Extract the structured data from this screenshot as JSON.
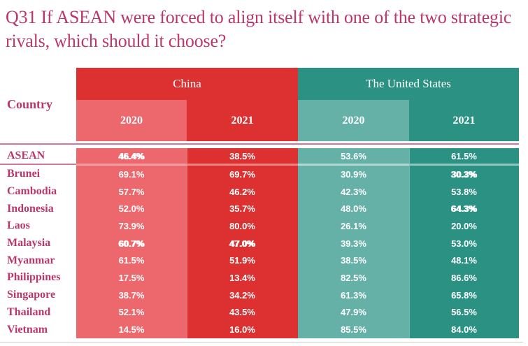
{
  "title": "Q31 If ASEAN were forced to align itself with one of the two strategic rivals, which should it choose?",
  "colors": {
    "title_magenta": "#ba376c",
    "china_red": "#dd3131",
    "china_light_red": "#ec686c",
    "us_teal": "#2b9183",
    "us_light_teal": "#65b1a8",
    "separator_pink": "#d4769a",
    "bottom_rule_gray": "#cccccc",
    "value_text": "#ffffff"
  },
  "table": {
    "country_header": "Country",
    "groups": [
      {
        "label": "China",
        "years": [
          "2020",
          "2021"
        ]
      },
      {
        "label": "The United States",
        "years": [
          "2020",
          "2021"
        ]
      }
    ],
    "rows": [
      {
        "country": "ASEAN",
        "values": [
          "46.4%",
          "38.5%",
          "53.6%",
          "61.5%"
        ],
        "bold": [
          true,
          false,
          false,
          false
        ]
      },
      {
        "country": "Brunei",
        "values": [
          "69.1%",
          "69.7%",
          "30.9%",
          "30.3%"
        ],
        "bold": [
          false,
          false,
          false,
          true
        ]
      },
      {
        "country": "Cambodia",
        "values": [
          "57.7%",
          "46.2%",
          "42.3%",
          "53.8%"
        ],
        "bold": [
          false,
          false,
          false,
          false
        ]
      },
      {
        "country": "Indonesia",
        "values": [
          "52.0%",
          "35.7%",
          "48.0%",
          "64.3%"
        ],
        "bold": [
          false,
          false,
          false,
          true
        ]
      },
      {
        "country": "Laos",
        "values": [
          "73.9%",
          "80.0%",
          "26.1%",
          "20.0%"
        ],
        "bold": [
          false,
          false,
          false,
          false
        ]
      },
      {
        "country": "Malaysia",
        "values": [
          "60.7%",
          "47.0%",
          "39.3%",
          "53.0%"
        ],
        "bold": [
          true,
          true,
          false,
          false
        ]
      },
      {
        "country": "Myanmar",
        "values": [
          "61.5%",
          "51.9%",
          "38.5%",
          "48.1%"
        ],
        "bold": [
          false,
          false,
          false,
          false
        ]
      },
      {
        "country": "Philippines",
        "values": [
          "17.5%",
          "13.4%",
          "82.5%",
          "86.6%"
        ],
        "bold": [
          false,
          false,
          false,
          false
        ]
      },
      {
        "country": "Singapore",
        "values": [
          "38.7%",
          "34.2%",
          "61.3%",
          "65.8%"
        ],
        "bold": [
          false,
          false,
          false,
          false
        ]
      },
      {
        "country": "Thailand",
        "values": [
          "52.1%",
          "43.5%",
          "47.9%",
          "56.5%"
        ],
        "bold": [
          false,
          false,
          false,
          false
        ]
      },
      {
        "country": "Vietnam",
        "values": [
          "14.5%",
          "16.0%",
          "85.5%",
          "84.0%"
        ],
        "bold": [
          false,
          false,
          false,
          false
        ]
      }
    ]
  },
  "chart_data": {
    "type": "table",
    "title": "Q31 If ASEAN were forced to align itself with one of the two strategic rivals, which should it choose?",
    "column_groups": [
      "China",
      "The United States"
    ],
    "columns": [
      "China 2020",
      "China 2021",
      "The United States 2020",
      "The United States 2021"
    ],
    "row_labels": [
      "ASEAN",
      "Brunei",
      "Cambodia",
      "Indonesia",
      "Laos",
      "Malaysia",
      "Myanmar",
      "Philippines",
      "Singapore",
      "Thailand",
      "Vietnam"
    ],
    "values_percent": [
      [
        46.4,
        38.5,
        53.6,
        61.5
      ],
      [
        69.1,
        69.7,
        30.9,
        30.3
      ],
      [
        57.7,
        46.2,
        42.3,
        53.8
      ],
      [
        52.0,
        35.7,
        48.0,
        64.3
      ],
      [
        73.9,
        80.0,
        26.1,
        20.0
      ],
      [
        60.7,
        47.0,
        39.3,
        53.0
      ],
      [
        61.5,
        51.9,
        38.5,
        48.1
      ],
      [
        17.5,
        13.4,
        82.5,
        86.6
      ],
      [
        38.7,
        34.2,
        61.3,
        65.8
      ],
      [
        52.1,
        43.5,
        47.9,
        56.5
      ],
      [
        14.5,
        16.0,
        85.5,
        84.0
      ]
    ],
    "emphasized_cells": [
      {
        "row": "ASEAN",
        "column": "China 2020",
        "value": 46.4
      },
      {
        "row": "Brunei",
        "column": "The United States 2021",
        "value": 30.3
      },
      {
        "row": "Indonesia",
        "column": "The United States 2021",
        "value": 64.3
      },
      {
        "row": "Malaysia",
        "column": "China 2020",
        "value": 60.7
      },
      {
        "row": "Malaysia",
        "column": "China 2021",
        "value": 47.0
      }
    ]
  }
}
